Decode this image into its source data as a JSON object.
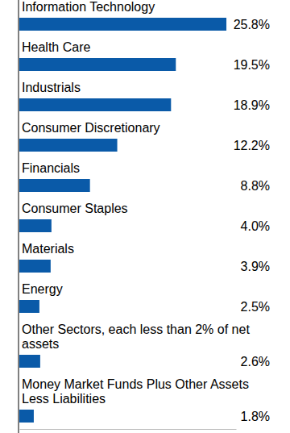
{
  "chart_data": {
    "type": "bar",
    "orientation": "horizontal",
    "categories": [
      "Information Technology",
      "Health Care",
      "Industrials",
      "Consumer Discretionary",
      "Financials",
      "Consumer Staples",
      "Materials",
      "Energy",
      "Other Sectors, each less than 2% of net assets",
      "Money Market Funds Plus Other Assets Less Liabilities"
    ],
    "values": [
      25.8,
      19.5,
      18.9,
      12.2,
      8.8,
      4.0,
      3.9,
      2.5,
      2.6,
      1.8
    ],
    "value_labels": [
      "25.8%",
      "19.5%",
      "18.9%",
      "12.2%",
      "8.8%",
      "4.0%",
      "3.9%",
      "2.5%",
      "2.6%",
      "1.8%"
    ],
    "color": "#0a5aa8",
    "xlim": [
      0,
      27
    ],
    "data_labels": true,
    "tick_labels": false
  }
}
